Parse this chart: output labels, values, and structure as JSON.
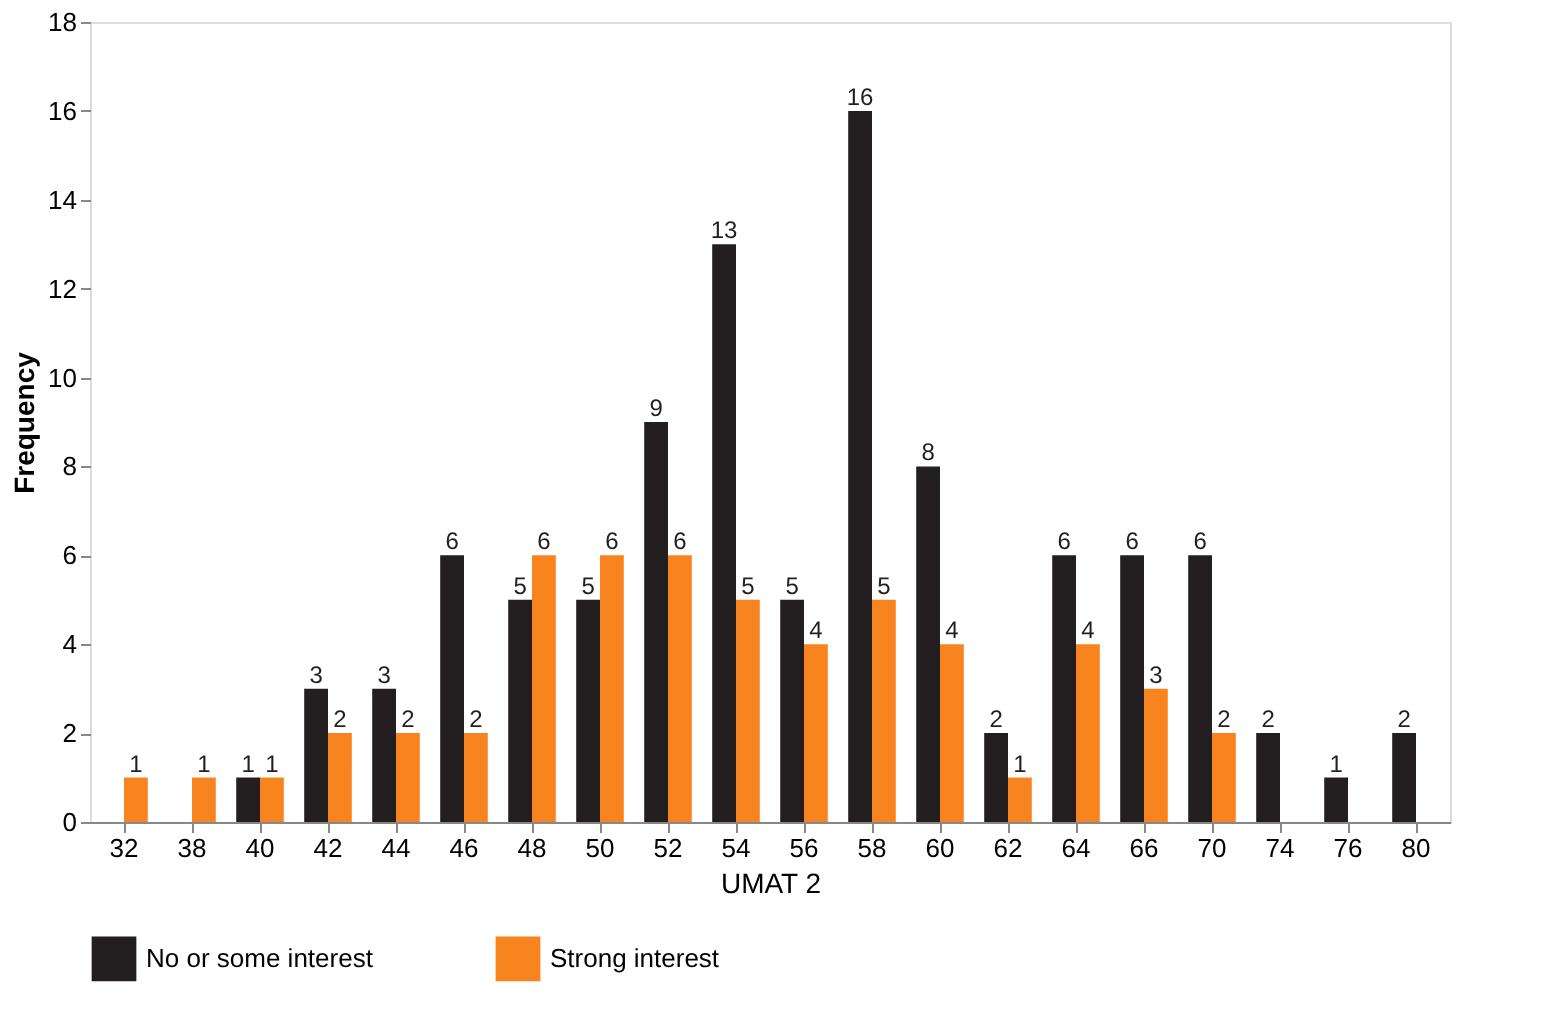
{
  "chart_data": {
    "type": "bar",
    "xlabel": "UMAT 2",
    "ylabel": "Frequency",
    "categories": [
      "32",
      "38",
      "40",
      "42",
      "44",
      "46",
      "48",
      "50",
      "52",
      "54",
      "56",
      "58",
      "60",
      "62",
      "64",
      "66",
      "70",
      "74",
      "76",
      "80"
    ],
    "series": [
      {
        "name": "No or some interest",
        "color": "#231f20",
        "values": [
          null,
          null,
          1,
          3,
          3,
          6,
          5,
          5,
          9,
          13,
          5,
          16,
          8,
          2,
          6,
          6,
          6,
          2,
          1,
          2
        ]
      },
      {
        "name": "Strong interest",
        "color": "#f7841f",
        "values": [
          1,
          1,
          1,
          2,
          2,
          2,
          6,
          6,
          6,
          5,
          4,
          5,
          4,
          1,
          4,
          3,
          2,
          null,
          null,
          null
        ]
      }
    ],
    "ylim": [
      0,
      18
    ],
    "yticks": [
      0,
      2,
      4,
      6,
      8,
      10,
      12,
      14,
      16,
      18
    ],
    "grid": false,
    "legend": "bottom",
    "data_labels": true
  }
}
